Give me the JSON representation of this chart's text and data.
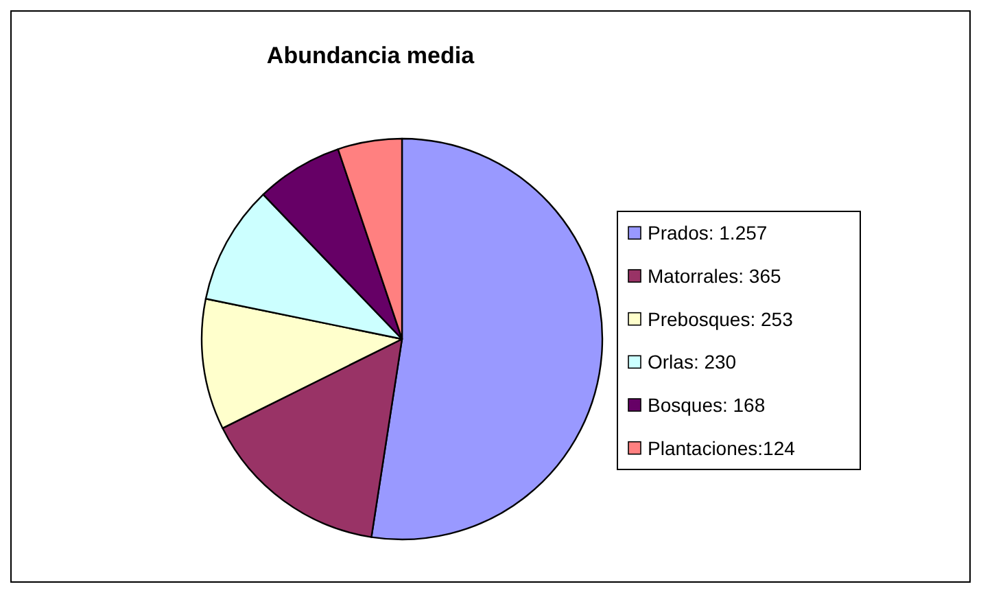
{
  "chart_data": {
    "type": "pie",
    "title": "Abundancia media",
    "categories": [
      "Prados: 1.257",
      "Matorrales: 365",
      "Prebosques: 253",
      "Orlas: 230",
      "Bosques: 168",
      "Plantaciones:124"
    ],
    "values": [
      1257,
      365,
      253,
      230,
      168,
      124
    ],
    "colors": [
      "#9999ff",
      "#993366",
      "#ffffcc",
      "#ccffff",
      "#660066",
      "#ff8080"
    ],
    "legend": "right"
  }
}
